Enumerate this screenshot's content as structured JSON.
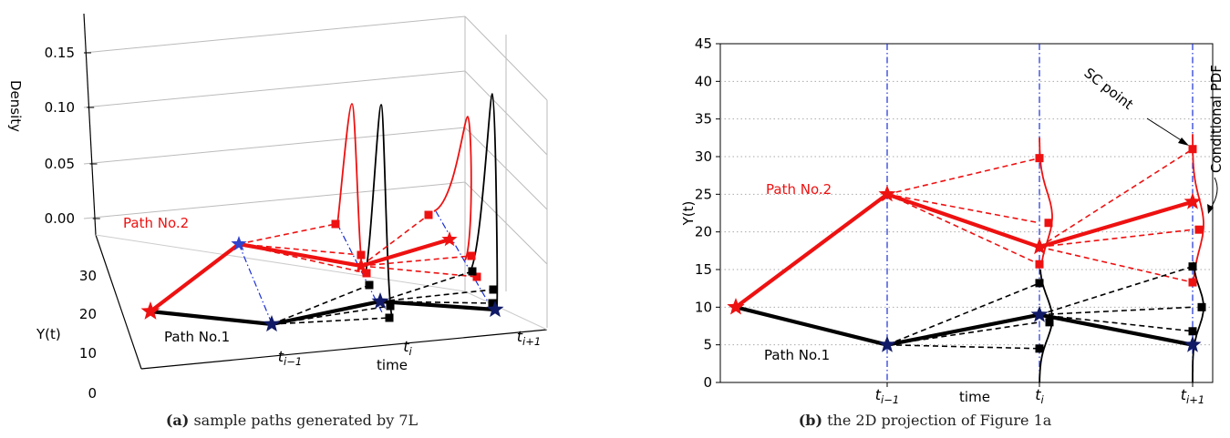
{
  "figures": [
    {
      "caption_label": "(a)",
      "caption_text": "sample paths generated by 7L"
    },
    {
      "caption_label": "(b)",
      "caption_text": "the 2D projection of Figure 1a"
    }
  ],
  "chart_data": [
    {
      "type": "line",
      "projection": "3d",
      "axes": {
        "x": {
          "label": "time",
          "ticks": [
            "t_{i-1}",
            "t_i",
            "t_{i+1}"
          ]
        },
        "y": {
          "label": "Y(t)",
          "ticks": [
            0,
            10,
            20,
            30
          ]
        },
        "z": {
          "label": "Density",
          "ticks": [
            0.0,
            0.05,
            0.1,
            0.15
          ]
        }
      },
      "grid": true,
      "series": [
        {
          "name": "Path No.1",
          "color": "#000000",
          "x": [
            0,
            1,
            2,
            3
          ],
          "y": [
            10,
            5,
            9,
            5
          ]
        },
        {
          "name": "Path No.2",
          "color": "#ee1111",
          "x": [
            0,
            1,
            2,
            3
          ],
          "y": [
            10,
            25,
            18,
            24
          ]
        }
      ],
      "sc_points": [
        {
          "color": "#ee1111",
          "from": [
            1,
            25
          ],
          "to": [
            [
              2,
              29.8
            ],
            [
              2,
              21.2
            ],
            [
              2,
              15.7
            ]
          ]
        },
        {
          "color": "#ee1111",
          "from": [
            2,
            18
          ],
          "to": [
            [
              3,
              31
            ],
            [
              3,
              20.3
            ],
            [
              3,
              13.3
            ]
          ]
        },
        {
          "color": "#000000",
          "from": [
            1,
            5
          ],
          "to": [
            [
              2,
              13.2
            ],
            [
              2,
              8
            ],
            [
              2,
              4.5
            ]
          ]
        },
        {
          "color": "#000000",
          "from": [
            2,
            9
          ],
          "to": [
            [
              3,
              15.4
            ],
            [
              3,
              10
            ],
            [
              3,
              6.8
            ]
          ]
        }
      ],
      "densities": [
        {
          "color": "#ee1111",
          "x": 2,
          "mean": 22,
          "peak": 0.1
        },
        {
          "color": "#000000",
          "x": 2,
          "mean": 8.5,
          "peak": 0.105
        },
        {
          "color": "#ee1111",
          "x": 3,
          "mean": 21,
          "peak": 0.09
        },
        {
          "color": "#000000",
          "x": 3,
          "mean": 10,
          "peak": 0.115
        }
      ]
    },
    {
      "type": "line",
      "xlabel": "time",
      "ylabel": "Y(t)",
      "x_ticks": [
        "t_{i-1}",
        "t_i",
        "t_{i+1}"
      ],
      "ylim": [
        0,
        45
      ],
      "yticks": [
        0,
        5,
        10,
        15,
        20,
        25,
        30,
        35,
        40,
        45
      ],
      "grid": "horizontal-dotted",
      "series": [
        {
          "name": "Path No.1",
          "color": "#000000",
          "x": [
            0,
            1,
            2,
            3
          ],
          "y": [
            10,
            5,
            9,
            5
          ]
        },
        {
          "name": "Path No.2",
          "color": "#ee1111",
          "x": [
            0,
            1,
            2,
            3
          ],
          "y": [
            10,
            25,
            18,
            24
          ]
        }
      ],
      "sc_points": [
        {
          "color": "#ee1111",
          "from": [
            1,
            25
          ],
          "to": [
            [
              2,
              29.8
            ],
            [
              2,
              21.2
            ],
            [
              2,
              15.7
            ]
          ]
        },
        {
          "color": "#ee1111",
          "from": [
            2,
            18
          ],
          "to": [
            [
              3,
              31
            ],
            [
              3,
              20.3
            ],
            [
              3,
              13.3
            ]
          ]
        },
        {
          "color": "#000000",
          "from": [
            1,
            5
          ],
          "to": [
            [
              2,
              13.2
            ],
            [
              2,
              8
            ],
            [
              2,
              4.5
            ]
          ]
        },
        {
          "color": "#000000",
          "from": [
            2,
            9
          ],
          "to": [
            [
              3,
              15.4
            ],
            [
              3,
              10
            ],
            [
              3,
              6.8
            ]
          ]
        }
      ],
      "annotations": [
        {
          "text": "SC point",
          "target": [
            3,
            31
          ]
        },
        {
          "text": "Conditional PDF",
          "target": [
            3,
            22
          ]
        }
      ]
    }
  ]
}
